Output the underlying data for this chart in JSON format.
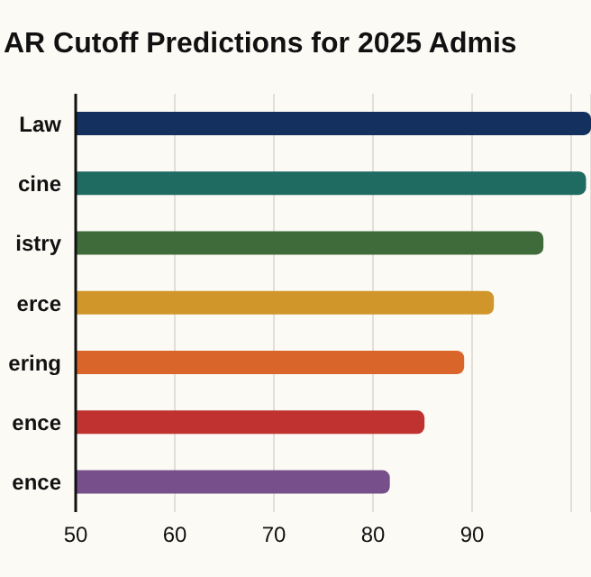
{
  "chart_data": {
    "type": "bar",
    "orientation": "horizontal",
    "title": "AR Cutoff Predictions for 2025 Admis",
    "categories": [
      "Law",
      "cine",
      "istry",
      "erce",
      "ering",
      "ence",
      "ence"
    ],
    "values": [
      102,
      101.5,
      97.2,
      92.2,
      89.2,
      85.2,
      81.7
    ],
    "colors": [
      "#14305e",
      "#1f6b62",
      "#3f6b3a",
      "#d0962a",
      "#d9652a",
      "#c0322f",
      "#774f8a"
    ],
    "xlim": [
      50,
      102
    ],
    "xticks": [
      50,
      60,
      70,
      80,
      90,
      {
        "value": 100,
        "label": null
      }
    ],
    "grid": "x"
  }
}
